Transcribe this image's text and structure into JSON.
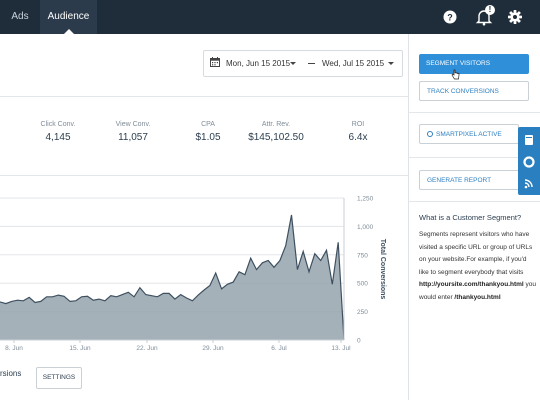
{
  "nav": {
    "tabs": [
      {
        "label": "Ads"
      },
      {
        "label": "Audience"
      }
    ],
    "icons": [
      "help-icon",
      "notifications-icon",
      "settings-icon"
    ],
    "notification_count": "!"
  },
  "date_range": {
    "start": "Mon, Jun 15 2015",
    "end": "Wed, Jul 15 2015"
  },
  "metrics": [
    {
      "label": "Click Conv.",
      "value": "4,145"
    },
    {
      "label": "View Conv.",
      "value": "11,057"
    },
    {
      "label": "CPA",
      "value": "$1.05"
    },
    {
      "label": "Attr. Rev.",
      "value": "$145,102.50"
    },
    {
      "label": "ROI",
      "value": "6.4x"
    }
  ],
  "chart_data": {
    "type": "area",
    "x_tick_labels": [
      "8. Jun",
      "15. Jun",
      "22. Jun",
      "29. Jun",
      "6. Jul",
      "13. Jul"
    ],
    "y_tick_labels": [
      "0",
      "250",
      "500",
      "750",
      "1,000",
      "1,250"
    ],
    "ylabel": "Total Conversions",
    "ylim": [
      0,
      1250
    ],
    "y_axis_position": "right",
    "grid": true,
    "values": [
      335,
      320,
      340,
      350,
      345,
      375,
      330,
      340,
      380,
      380,
      395,
      385,
      340,
      345,
      380,
      385,
      350,
      360,
      345,
      390,
      380,
      400,
      420,
      380,
      460,
      400,
      390,
      380,
      410,
      410,
      360,
      400,
      370,
      345,
      395,
      440,
      480,
      590,
      450,
      490,
      510,
      600,
      575,
      720,
      620,
      680,
      700,
      640,
      700,
      830,
      1100,
      620,
      780,
      600,
      760,
      700,
      790,
      490,
      860,
      0
    ],
    "color": "#95a3ad",
    "line_color": "#3e5060"
  },
  "chart_legend_partial": "rsions",
  "settings_button": "SETTINGS",
  "sidebar": {
    "segment_visitors": "SEGMENT VISITORS",
    "track_conversions": "TRACK CONVERSIONS",
    "smartpixel": "SMARTPIXEL ACTIVE",
    "generate_report": "GENERATE REPORT",
    "help_title": "What is a Customer Segment?",
    "help_body": "Segments represent visitors who have visited a specific URL or group of URLs on your website.For example, if you'd like to segment everybody that visits",
    "help_url": "http://yoursite.com/thankyou.html",
    "help_mid": " you would enter ",
    "help_path": "/thankyou.html"
  },
  "side_tab_icons": [
    "book-icon",
    "lifebuoy-icon",
    "rss-icon"
  ],
  "colors": {
    "nav_bg": "#1f2d3a",
    "accent": "#2f8fd8",
    "side_tab_bg": "#2a7fc0"
  }
}
